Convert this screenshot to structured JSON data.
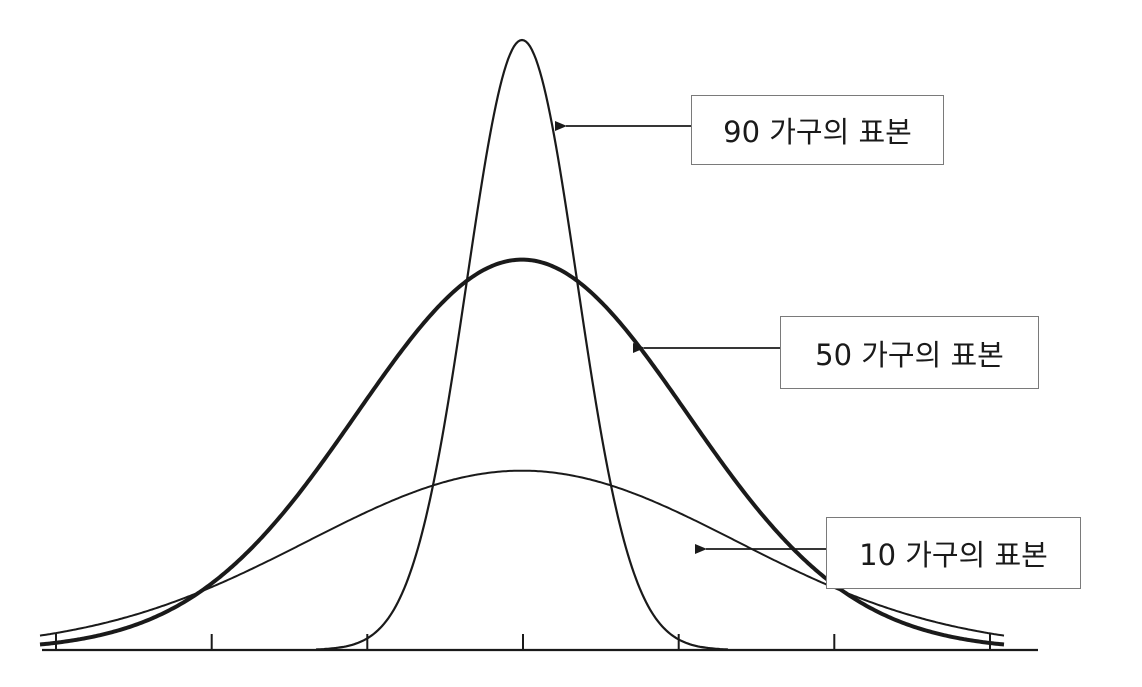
{
  "labels": {
    "n90": "90 가구의 표본",
    "n50": "50 가구의 표본",
    "n10": "10 가구의 표본"
  },
  "curves": [
    {
      "id": "n90",
      "relative_peak": 1.0,
      "relative_spread": 0.3333
    },
    {
      "id": "n50",
      "relative_peak": 0.64,
      "relative_spread": 1.0
    },
    {
      "id": "n10",
      "relative_peak": 0.294,
      "relative_spread": 1.3
    }
  ],
  "axis": {
    "tick_count": 7
  },
  "colors": {
    "line": "#1a1a1a",
    "box_border": "#7a7a7a"
  }
}
